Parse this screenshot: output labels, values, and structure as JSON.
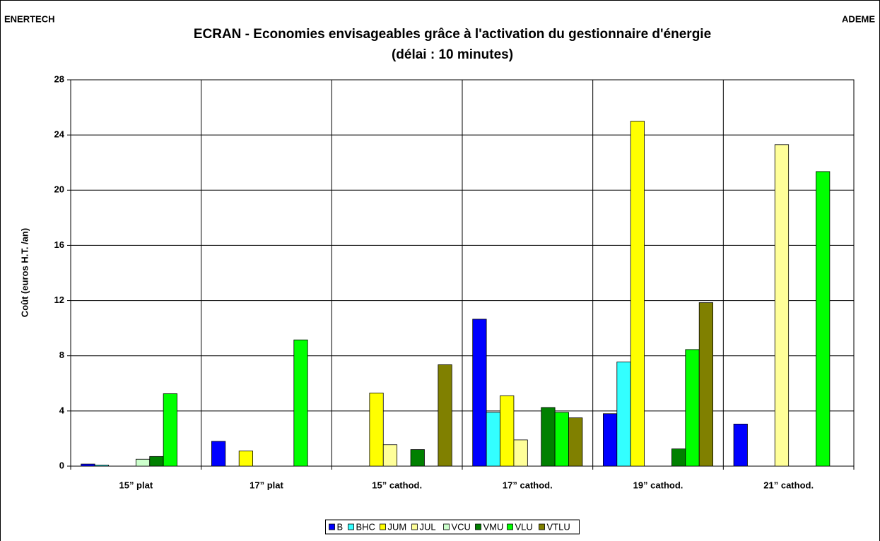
{
  "corner_left": "ENERTECH",
  "corner_right": "ADEME",
  "chart_data": {
    "type": "bar",
    "title": "ECRAN - Economies envisageables grâce à  l'activation du gestionnaire d'énergie",
    "subtitle": "(délai : 10 minutes)",
    "y_label": "Coût (euros H.T. /an)",
    "categories": [
      "15” plat",
      "17” plat",
      "15” cathod.",
      "17” cathod.",
      "19” cathod.",
      "21” cathod."
    ],
    "series": [
      {
        "name": "B",
        "color": "#0000ff",
        "values": [
          0.15,
          1.8,
          0,
          10.65,
          3.8,
          3.05
        ]
      },
      {
        "name": "BHC",
        "color": "#33ffff",
        "values": [
          0.08,
          0,
          0,
          3.9,
          7.55,
          0
        ]
      },
      {
        "name": "JUM",
        "color": "#ffff00",
        "values": [
          0,
          1.1,
          5.3,
          5.1,
          25,
          0
        ]
      },
      {
        "name": "JUL",
        "color": "#ffff99",
        "values": [
          0,
          0,
          1.55,
          1.9,
          0,
          23.3
        ]
      },
      {
        "name": "VCU",
        "color": "#ccffcc",
        "values": [
          0.5,
          0,
          0,
          0,
          0,
          0
        ]
      },
      {
        "name": "VMU",
        "color": "#008000",
        "values": [
          0.7,
          0,
          1.2,
          4.25,
          1.25,
          0
        ]
      },
      {
        "name": "VLU",
        "color": "#00ff00",
        "values": [
          5.25,
          9.15,
          0,
          3.9,
          8.45,
          21.35
        ]
      },
      {
        "name": "VTLU",
        "color": "#808000",
        "values": [
          0,
          0,
          7.35,
          3.5,
          11.85,
          0
        ]
      }
    ],
    "ylim": [
      0,
      28
    ],
    "yticks": [
      0,
      4,
      8,
      12,
      16,
      20,
      24,
      28
    ],
    "grid": true,
    "legend": "bottom"
  }
}
